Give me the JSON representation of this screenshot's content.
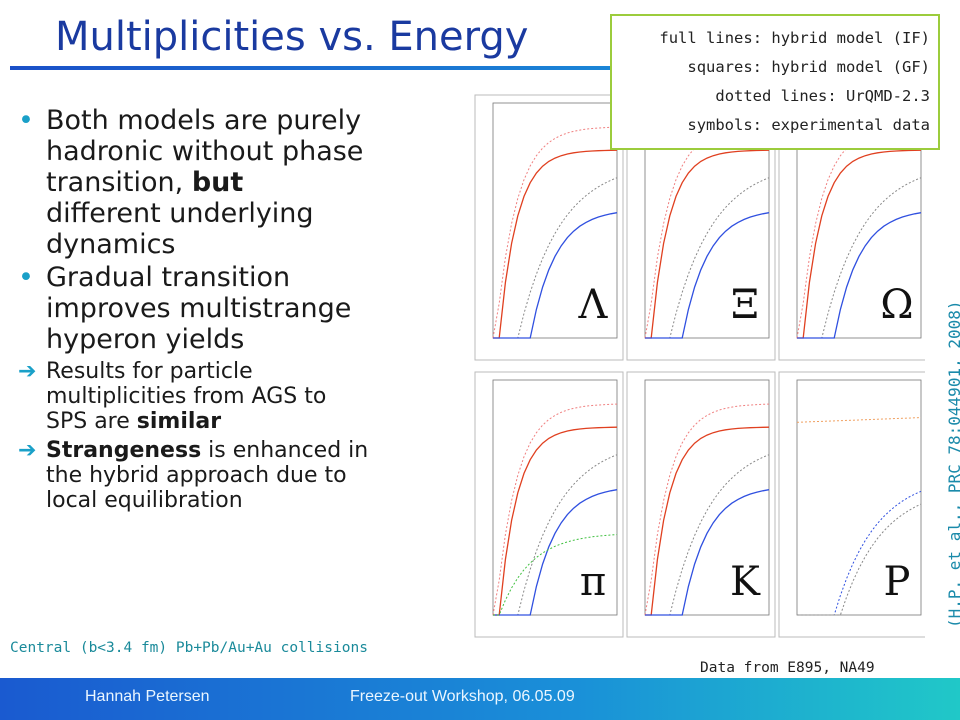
{
  "title": "Multiplicities vs. Energy",
  "legend": [
    "full lines: hybrid model (IF)",
    "squares: hybrid model (GF)",
    "dotted lines: UrQMD-2.3",
    "symbols: experimental data"
  ],
  "bullets": [
    {
      "style": "big",
      "lines": [
        [
          {
            "text": "Both models are purely"
          }
        ],
        [
          {
            "text": "hadronic without phase"
          }
        ],
        [
          {
            "text": "transition, "
          },
          {
            "text": "but",
            "bold": true
          }
        ],
        [
          {
            "text": "different underlying"
          }
        ],
        [
          {
            "text": "dynamics"
          }
        ]
      ]
    },
    {
      "style": "big",
      "lines": [
        [
          {
            "text": "Gradual transition"
          }
        ],
        [
          {
            "text": "improves multistrange"
          }
        ],
        [
          {
            "text": "hyperon yields"
          }
        ]
      ]
    },
    {
      "style": "small",
      "lines": [
        [
          {
            "text": "Results for particle"
          }
        ],
        [
          {
            "text": "multiplicities from AGS to"
          }
        ],
        [
          {
            "text": "SPS are "
          },
          {
            "text": "similar",
            "bold": true
          }
        ]
      ]
    },
    {
      "style": "small",
      "lines": [
        [
          {
            "text": "Strangeness",
            "bold": true
          },
          {
            "text": " is enhanced in"
          }
        ],
        [
          {
            "text": "the hybrid approach due to"
          }
        ],
        [
          {
            "text": "local equilibration"
          }
        ]
      ]
    }
  ],
  "panels": [
    "Λ",
    "Ξ",
    "Ω",
    "π",
    "K",
    "P"
  ],
  "note": "Central (b<3.4 fm) Pb+Pb/Au+Au collisions",
  "source": "Data from E895, NA49",
  "reference": {
    "before": "(H.P. et al., ",
    "link": "PRC 78:044901",
    "after": ", 2008)"
  },
  "footer": {
    "author": "Hannah Petersen",
    "event": "Freeze-out Workshop, 06.05.09"
  }
}
